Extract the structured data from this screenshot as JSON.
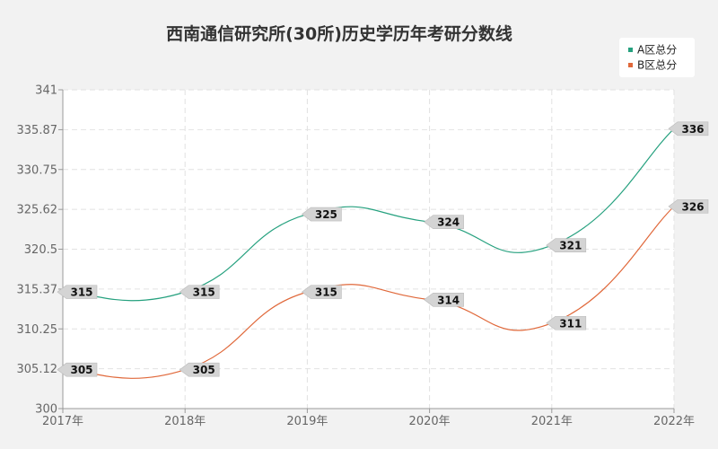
{
  "chart_data": {
    "type": "line",
    "title": "西南通信研究所(30所)历史学历年考研分数线",
    "categories": [
      "2017年",
      "2018年",
      "2019年",
      "2020年",
      "2021年",
      "2022年"
    ],
    "y_ticks": [
      "300",
      "305.12",
      "310.25",
      "315.37",
      "320.5",
      "325.62",
      "330.75",
      "335.87",
      "341"
    ],
    "ylim": [
      300,
      341
    ],
    "grid": true,
    "legend_position": "top-right",
    "series": [
      {
        "name": "A区总分",
        "color": "#26a17f",
        "values": [
          315,
          315,
          325,
          324,
          321,
          336
        ]
      },
      {
        "name": "B区总分",
        "color": "#e0683a",
        "values": [
          305,
          305,
          315,
          314,
          311,
          326
        ]
      }
    ]
  }
}
